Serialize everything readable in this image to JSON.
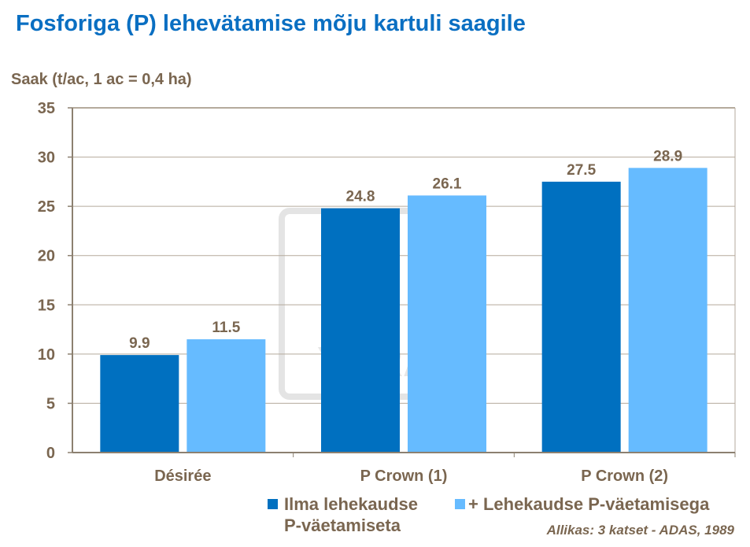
{
  "chart_data": {
    "type": "bar",
    "title": "Fosforiga (P) lehevätamise mõju kartuli saagile",
    "ylabel": "Saak (t/ac, 1 ac = 0,4 ha)",
    "xlabel": "",
    "categories": [
      "Désirée",
      "P Crown (1)",
      "P Crown (2)"
    ],
    "series": [
      {
        "name": "Ilma lehekaudse P-väetamiseta",
        "values": [
          9.9,
          24.8,
          27.5
        ],
        "color": "#0070c0"
      },
      {
        "name": "+ Lehekaudse P-väetamisega",
        "values": [
          11.5,
          26.1,
          28.9
        ],
        "color": "#66bbff"
      }
    ],
    "ylim": [
      0,
      35
    ],
    "yticks": [
      0,
      5,
      10,
      15,
      20,
      25,
      30,
      35
    ],
    "grid": true,
    "legend_position": "bottom",
    "data_labels": true
  },
  "legend": {
    "item1_line1": "Ilma lehekaudse",
    "item1_line2": "P-väetamiseta",
    "item2": "+ Lehekaudse P-väetamisega"
  },
  "source": "Allikas: 3 katset - ADAS, 1989",
  "watermark": {
    "text": "YARA"
  }
}
